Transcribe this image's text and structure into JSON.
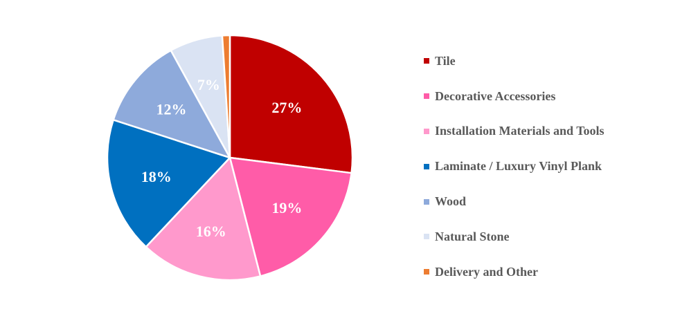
{
  "chart_data": {
    "type": "pie",
    "categories": [
      "Tile",
      "Decorative Accessories",
      "Installation Materials and Tools",
      "Laminate / Luxury Vinyl Plank",
      "Wood",
      "Natural Stone",
      "Delivery and Other"
    ],
    "values": [
      27,
      19,
      16,
      18,
      12,
      7,
      1
    ],
    "labels": [
      "27%",
      "19%",
      "16%",
      "18%",
      "12%",
      "7%",
      ""
    ],
    "colors": [
      "#c00000",
      "#ff5ca8",
      "#ff99cc",
      "#0070c0",
      "#8eaadb",
      "#dae3f3",
      "#ed7d31"
    ],
    "start_angle": "12 o'clock",
    "direction": "clockwise",
    "legend_position": "right"
  }
}
